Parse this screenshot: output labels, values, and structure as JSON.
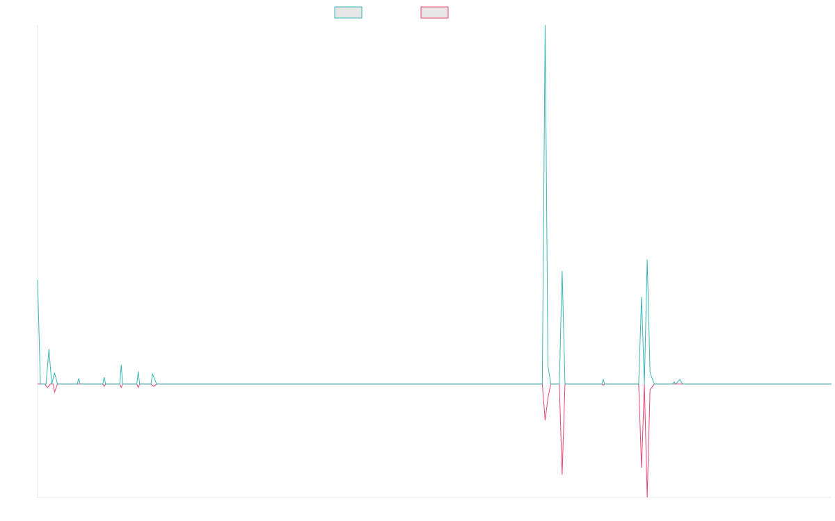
{
  "chart_data": {
    "type": "line",
    "title": "",
    "xlabel": "",
    "ylabel": "",
    "x_range": [
      0,
      280
    ],
    "ylim": [
      -10,
      31.7
    ],
    "grid": false,
    "legend_placement": "top-center",
    "colors": {
      "series_a": "#36b5b5",
      "series_b": "#e8456e",
      "legend_fill": "#e6e6e6",
      "axis": "#e6e6e6"
    },
    "legend": [
      {
        "name": "",
        "color": "#36b5b5"
      },
      {
        "name": "",
        "color": "#e8456e"
      }
    ],
    "series": [
      {
        "name": "",
        "color": "#36b5b5",
        "points": [
          [
            0,
            9.2
          ],
          [
            1,
            0
          ],
          [
            3,
            0
          ],
          [
            4,
            3.1
          ],
          [
            5,
            0
          ],
          [
            6,
            1.0
          ],
          [
            7,
            0
          ],
          [
            14,
            0
          ],
          [
            14.5,
            0.5
          ],
          [
            15,
            0
          ],
          [
            23,
            0
          ],
          [
            23.5,
            0.6
          ],
          [
            24,
            0
          ],
          [
            29,
            0
          ],
          [
            29.5,
            1.7
          ],
          [
            30,
            0
          ],
          [
            35,
            0
          ],
          [
            35.5,
            1.1
          ],
          [
            36,
            0
          ],
          [
            40,
            0
          ],
          [
            40.5,
            0.9
          ],
          [
            42,
            0
          ],
          [
            178,
            0
          ],
          [
            179,
            31.7
          ],
          [
            180,
            1.6
          ],
          [
            181,
            0
          ],
          [
            184,
            0
          ],
          [
            185,
            10.0
          ],
          [
            186,
            0
          ],
          [
            199,
            0
          ],
          [
            199.5,
            0.4
          ],
          [
            200,
            0
          ],
          [
            212,
            0
          ],
          [
            213,
            7.7
          ],
          [
            214,
            0
          ],
          [
            215,
            11.0
          ],
          [
            216,
            1.0
          ],
          [
            217.5,
            0
          ],
          [
            224,
            0
          ],
          [
            224.5,
            0.2
          ],
          [
            225,
            0
          ],
          [
            226.5,
            0.4
          ],
          [
            227.5,
            0
          ],
          [
            280,
            0
          ]
        ]
      },
      {
        "name": "",
        "color": "#e8456e",
        "points": [
          [
            0,
            0
          ],
          [
            2.5,
            0
          ],
          [
            3.5,
            -0.3
          ],
          [
            4.5,
            0
          ],
          [
            5.5,
            0
          ],
          [
            6,
            -0.7
          ],
          [
            7,
            0
          ],
          [
            23,
            0
          ],
          [
            23.5,
            -0.2
          ],
          [
            24,
            0
          ],
          [
            29,
            0
          ],
          [
            29.5,
            -0.3
          ],
          [
            30,
            0
          ],
          [
            35,
            0
          ],
          [
            35.5,
            -0.3
          ],
          [
            36,
            0
          ],
          [
            40,
            0
          ],
          [
            41,
            -0.2
          ],
          [
            42,
            0
          ],
          [
            178,
            0
          ],
          [
            179,
            -3.2
          ],
          [
            180,
            -1.2
          ],
          [
            181,
            0
          ],
          [
            184,
            0
          ],
          [
            185,
            -8.0
          ],
          [
            186,
            0
          ],
          [
            199,
            0
          ],
          [
            199.5,
            -0.1
          ],
          [
            200,
            0
          ],
          [
            212,
            0
          ],
          [
            213,
            -7.4
          ],
          [
            214,
            0
          ],
          [
            215,
            -10.0
          ],
          [
            216,
            -0.5
          ],
          [
            217.5,
            0
          ],
          [
            280,
            0
          ]
        ]
      }
    ]
  }
}
